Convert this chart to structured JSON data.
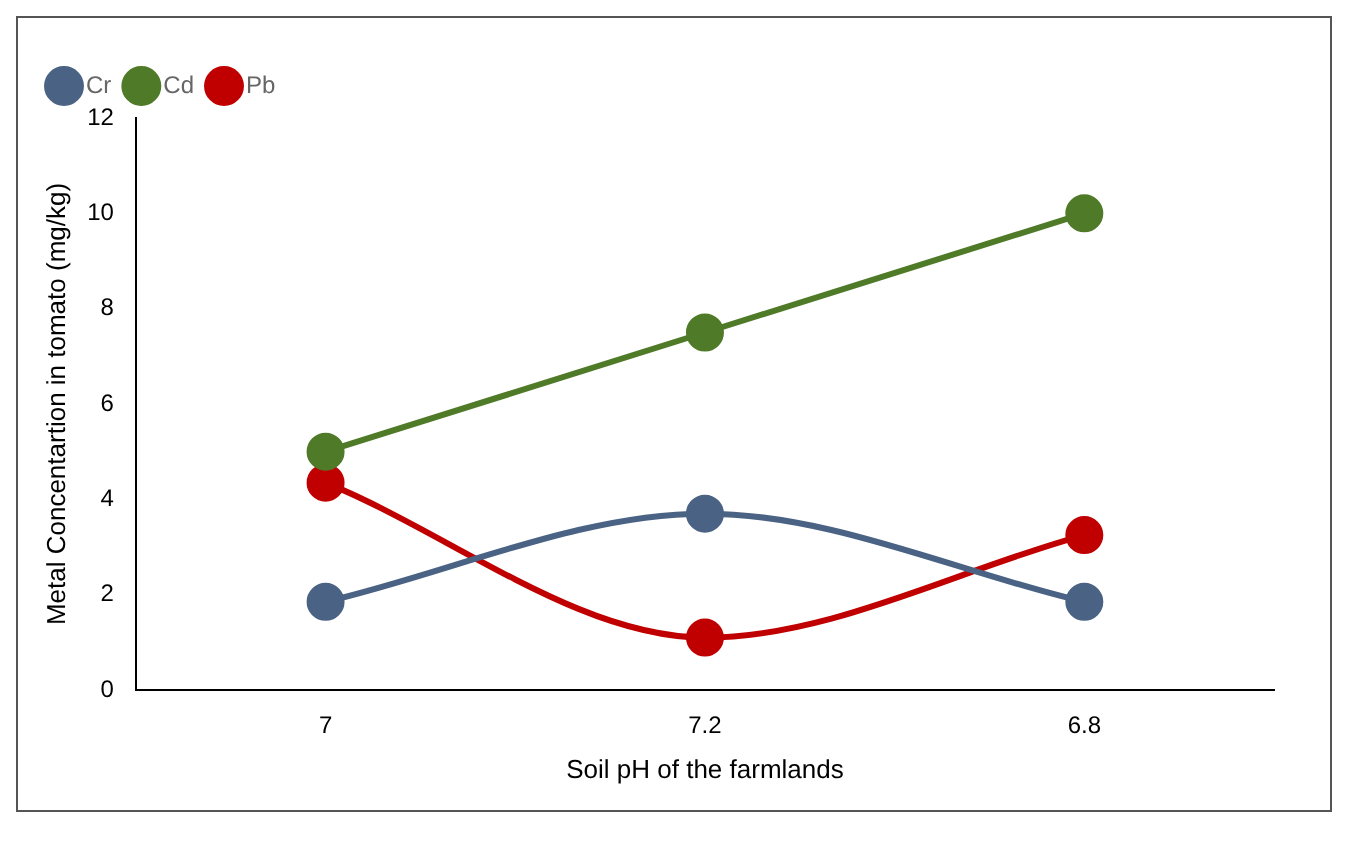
{
  "chart_data": {
    "type": "line",
    "xlabel": "Soil pH of the farmlands",
    "ylabel": "Metal Concentartion in tomato (mg/kg)",
    "categories": [
      "7",
      "7.2",
      "6.8"
    ],
    "series": [
      {
        "name": "Cr",
        "color": "#4a6384",
        "values": [
          1.85,
          3.7,
          1.85
        ]
      },
      {
        "name": "Cd",
        "color": "#4f7a28",
        "values": [
          5,
          7.5,
          10
        ]
      },
      {
        "name": "Pb",
        "color": "#c00000",
        "values": [
          4.35,
          1.1,
          3.25
        ]
      }
    ],
    "ylim": [
      0,
      12
    ],
    "yticks": [
      0,
      2,
      4,
      6,
      8,
      10,
      12
    ],
    "grid": false,
    "legend": "top left",
    "marker": "circle"
  }
}
